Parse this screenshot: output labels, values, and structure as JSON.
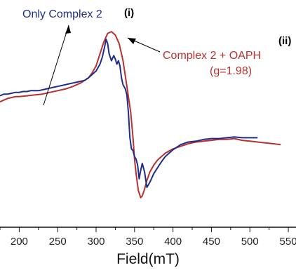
{
  "chart_data": {
    "type": "line",
    "xlabel": "Field(mT)",
    "ylabel": "",
    "xlim": [
      175,
      560
    ],
    "ticks": [
      "200",
      "250",
      "300",
      "350",
      "400",
      "450",
      "500",
      "550"
    ],
    "tick_values": [
      200,
      250,
      300,
      350,
      400,
      450,
      500,
      550
    ],
    "grid": false,
    "annotations": {
      "blue_label": "Only Complex 2",
      "blue_tag": "(i)",
      "red_label": "Complex 2 + OAPH",
      "red_g": "(g=1.98)",
      "red_tag": "(ii)"
    },
    "series": [
      {
        "name": "Only Complex 2",
        "color": "#1f2d8c",
        "x": [
          175,
          180,
          185,
          190,
          195,
          200,
          205,
          210,
          215,
          220,
          225,
          230,
          235,
          240,
          245,
          250,
          255,
          260,
          265,
          270,
          275,
          280,
          285,
          290,
          295,
          300,
          305,
          308,
          311,
          313,
          315,
          317,
          320,
          323,
          325,
          327,
          329,
          331,
          333,
          335,
          338,
          340,
          342,
          344,
          346,
          348,
          350,
          352,
          354,
          356,
          358,
          360,
          363,
          366,
          370,
          375,
          380,
          385,
          390,
          395,
          400,
          410,
          420,
          430,
          440,
          450,
          460,
          470,
          480,
          490,
          500,
          510
        ],
        "y": [
          0.29,
          0.31,
          0.31,
          0.32,
          0.33,
          0.33,
          0.34,
          0.34,
          0.35,
          0.35,
          0.35,
          0.36,
          0.37,
          0.38,
          0.39,
          0.4,
          0.41,
          0.42,
          0.43,
          0.44,
          0.45,
          0.46,
          0.47,
          0.5,
          0.54,
          0.58,
          0.66,
          0.74,
          0.86,
          0.95,
          0.9,
          0.78,
          0.7,
          0.76,
          0.72,
          0.66,
          0.7,
          0.64,
          0.5,
          0.42,
          0.37,
          0.3,
          0.1,
          -0.2,
          -0.33,
          -0.35,
          -0.42,
          -0.45,
          -0.52,
          -0.68,
          -0.58,
          -0.5,
          -0.6,
          -0.78,
          -0.72,
          -0.62,
          -0.55,
          -0.48,
          -0.42,
          -0.38,
          -0.34,
          -0.28,
          -0.25,
          -0.24,
          -0.22,
          -0.21,
          -0.21,
          -0.2,
          -0.19,
          -0.2,
          -0.2,
          -0.2
        ]
      },
      {
        "name": "Complex 2 + OAPH",
        "color": "#b8312f",
        "x": [
          175,
          180,
          185,
          190,
          195,
          200,
          210,
          220,
          230,
          240,
          250,
          260,
          270,
          280,
          290,
          295,
          300,
          305,
          310,
          315,
          320,
          325,
          330,
          335,
          340,
          345,
          348,
          350,
          352,
          355,
          358,
          360,
          363,
          366,
          370,
          375,
          380,
          390,
          400,
          410,
          420,
          430,
          440,
          450,
          460,
          470,
          480,
          490,
          500,
          510,
          520,
          530,
          540
        ],
        "y": [
          0.22,
          0.24,
          0.26,
          0.27,
          0.28,
          0.28,
          0.29,
          0.3,
          0.31,
          0.33,
          0.35,
          0.37,
          0.4,
          0.44,
          0.5,
          0.56,
          0.64,
          0.78,
          0.92,
          1.02,
          1.04,
          1.0,
          0.9,
          0.7,
          0.4,
          0.1,
          -0.2,
          -0.45,
          -0.62,
          -0.82,
          -0.9,
          -0.88,
          -0.8,
          -0.7,
          -0.6,
          -0.52,
          -0.46,
          -0.38,
          -0.33,
          -0.3,
          -0.27,
          -0.25,
          -0.24,
          -0.23,
          -0.22,
          -0.22,
          -0.21,
          -0.23,
          -0.24,
          -0.25,
          -0.26,
          -0.27,
          -0.28
        ]
      }
    ]
  }
}
